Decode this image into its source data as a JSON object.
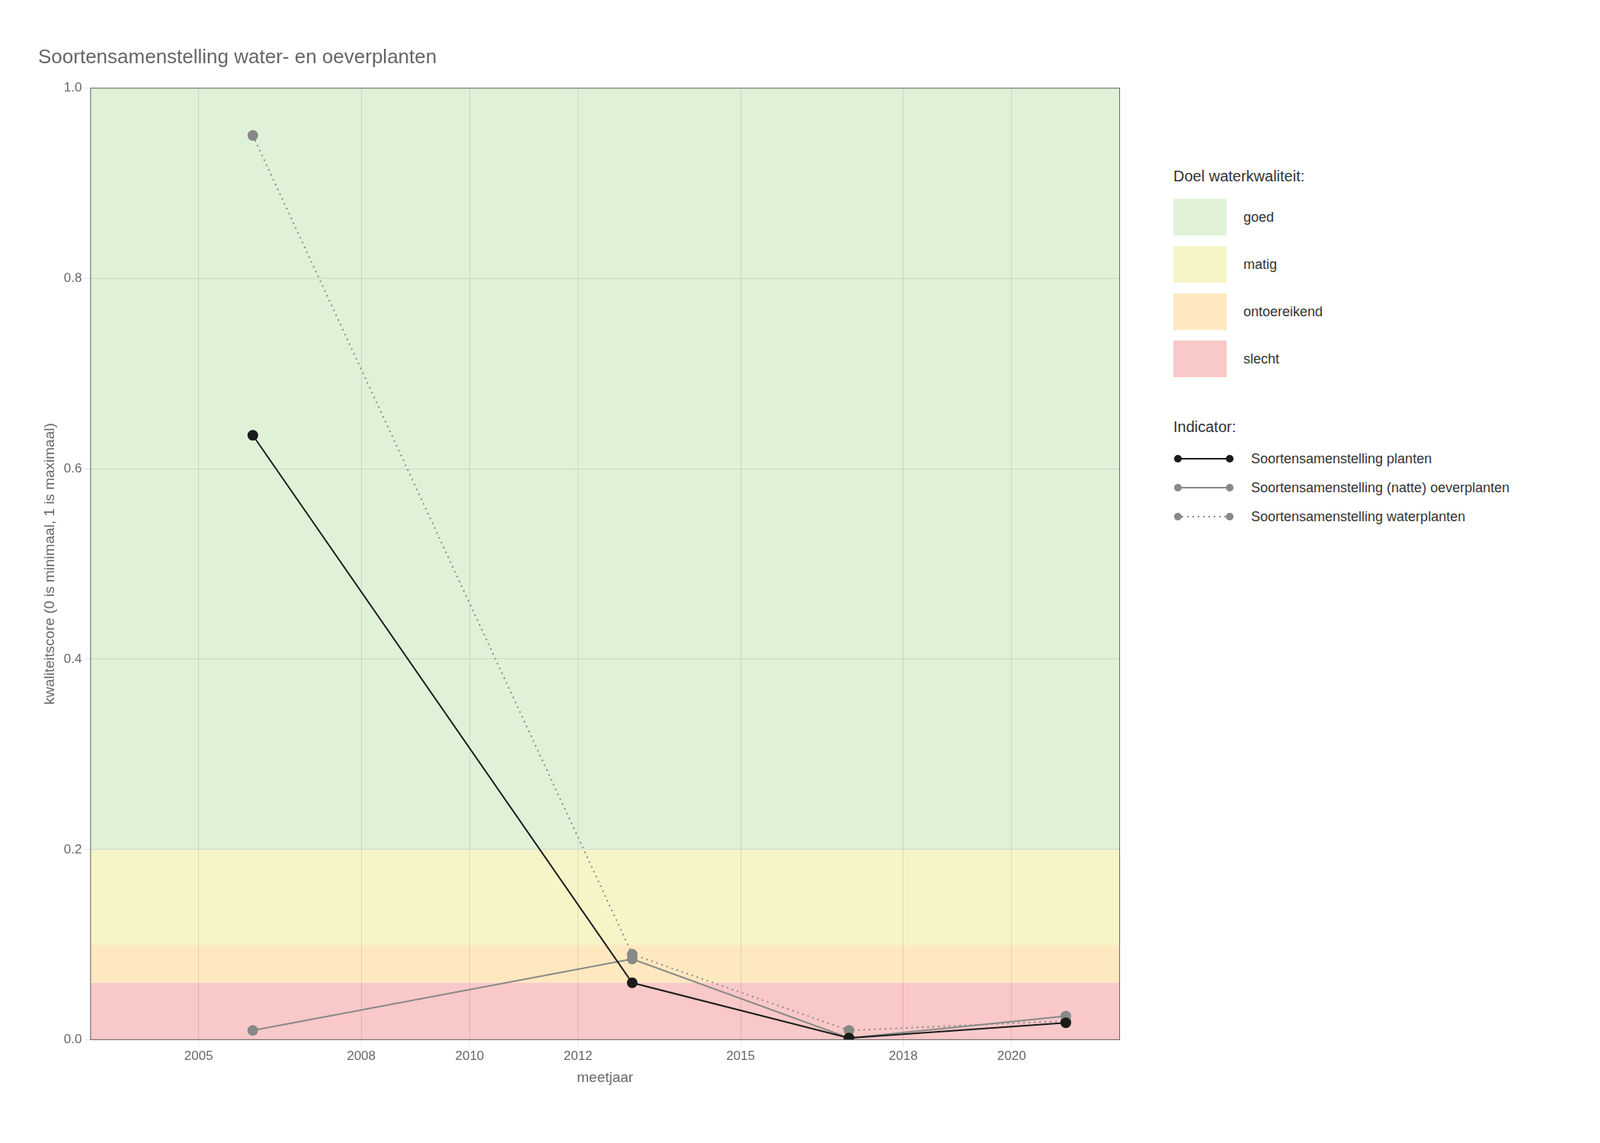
{
  "chart_data": {
    "type": "line",
    "title": "Soortensamenstelling water- en oeverplanten",
    "x_label": "meetjaar",
    "y_label": "kwaliteitscore (0 is minimaal, 1 is maximaal)",
    "x": [
      2006,
      2013,
      2017,
      2021
    ],
    "xlim": [
      2003,
      2022
    ],
    "xticks": [
      2005,
      2008,
      2010,
      2012,
      2015,
      2018,
      2020
    ],
    "ylim": [
      0.0,
      1.0
    ],
    "yticks": [
      {
        "value": 0,
        "label": "0.0"
      },
      0.2,
      0.4,
      0.6,
      0.8,
      {
        "value": 1,
        "label": "1.0"
      }
    ],
    "grid": true,
    "legend": "right",
    "bands_title": "Doel waterkwaliteit:",
    "bands": [
      {
        "name": "goed",
        "ymin": 0.2,
        "ymax": 1.0,
        "color": "#dff2d8"
      },
      {
        "name": "matig",
        "ymin": 0.1,
        "ymax": 0.2,
        "color": "#f5f5c8"
      },
      {
        "name": "ontoereikend",
        "ymin": 0.06,
        "ymax": 0.1,
        "color": "#fde8c0"
      },
      {
        "name": "slecht",
        "ymin": 0.0,
        "ymax": 0.06,
        "color": "#f9c8c8"
      }
    ],
    "legend_title": "Indicator:",
    "series": [
      {
        "name": "Soortensamenstelling planten",
        "color": "#1a1a1a",
        "line_style": "solid",
        "marker": "circle",
        "values": [
          0.635,
          0.06,
          0.002,
          0.018
        ]
      },
      {
        "name": "Soortensamenstelling (natte) oeverplanten",
        "color": "#888888",
        "line_style": "solid",
        "marker": "circle",
        "values": [
          0.01,
          0.085,
          0.002,
          0.025
        ]
      },
      {
        "name": "Soortensamenstelling waterplanten",
        "color": "#888888",
        "line_style": "dotted",
        "marker": "circle",
        "values": [
          0.95,
          0.09,
          0.01,
          0.02
        ]
      }
    ]
  }
}
